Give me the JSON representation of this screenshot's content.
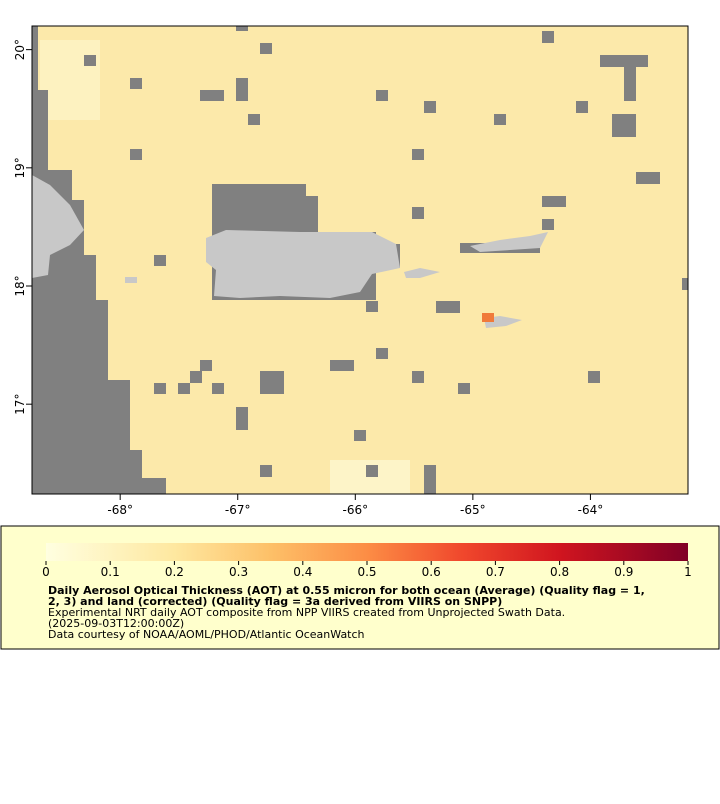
{
  "map": {
    "xlim": [
      -68.75,
      -63.17
    ],
    "ylim": [
      16.24,
      20.2
    ],
    "xticks": [
      {
        "value": -68,
        "label": "-68°"
      },
      {
        "value": -67,
        "label": "-67°"
      },
      {
        "value": -66,
        "label": "-66°"
      },
      {
        "value": -65,
        "label": "-65°"
      },
      {
        "value": -64,
        "label": "-64°"
      }
    ],
    "yticks": [
      {
        "value": 17,
        "label": "17°"
      },
      {
        "value": 18,
        "label": "18°"
      },
      {
        "value": 19,
        "label": "19°"
      },
      {
        "value": 20,
        "label": "20°"
      }
    ]
  },
  "colorbar": {
    "range": [
      0,
      1
    ],
    "ticks": [
      0,
      0.1,
      0.2,
      0.3,
      0.4,
      0.5,
      0.6,
      0.7,
      0.8,
      0.9,
      1
    ]
  },
  "legend": {
    "title_lines": [
      "Daily Aerosol Optical Thickness (AOT) at 0.55 micron for both ocean (Average) (Quality flag = 1,",
      "2, 3) and land (corrected) (Quality flag = 3a derived from VIIRS on SNPP)"
    ],
    "lines": [
      "Experimental NRT daily AOT composite from NPP VIIRS created from Unprojected Swath Data.",
      "(2025-09-03T12:00:00Z)",
      "Data courtesy of NOAA/AOML/PHOD/Atlantic OceanWatch"
    ]
  }
}
